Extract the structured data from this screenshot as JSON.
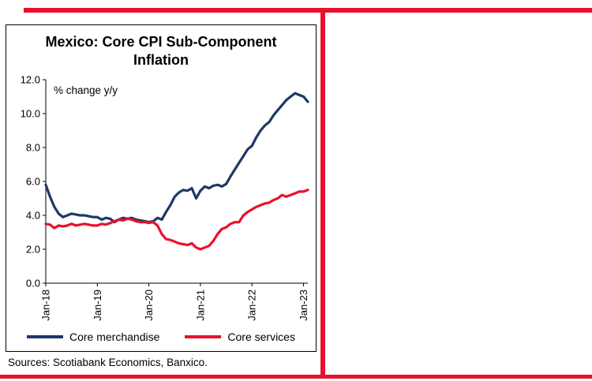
{
  "page": {
    "accent_color": "#e8112d"
  },
  "chart_data": {
    "type": "line",
    "title": "Mexico: Core CPI Sub-Component Inflation",
    "annotation": "% change y/y",
    "xlabel": "",
    "ylabel": "",
    "ylim": [
      0,
      12
    ],
    "ytick_step": 2,
    "grid": false,
    "legend_position": "bottom",
    "x_tick_labels": [
      "Jan-18",
      "Jan-19",
      "Jan-20",
      "Jan-21",
      "Jan-22",
      "Jan-23"
    ],
    "x_tick_positions": [
      0,
      12,
      24,
      36,
      48,
      60
    ],
    "x_frequency": "monthly",
    "series": [
      {
        "name": "Core merchandise",
        "color": "#1f3864",
        "values": [
          5.8,
          5.1,
          4.5,
          4.1,
          3.9,
          4.0,
          4.1,
          4.05,
          4.0,
          4.0,
          3.95,
          3.9,
          3.9,
          3.75,
          3.85,
          3.8,
          3.6,
          3.75,
          3.85,
          3.8,
          3.85,
          3.75,
          3.7,
          3.65,
          3.6,
          3.65,
          3.85,
          3.75,
          4.2,
          4.6,
          5.1,
          5.35,
          5.5,
          5.45,
          5.6,
          5.0,
          5.45,
          5.7,
          5.6,
          5.75,
          5.8,
          5.7,
          5.85,
          6.3,
          6.7,
          7.1,
          7.5,
          7.9,
          8.1,
          8.6,
          9.0,
          9.3,
          9.5,
          9.9,
          10.2,
          10.5,
          10.8,
          11.0,
          11.2,
          11.1,
          11.0,
          10.7
        ]
      },
      {
        "name": "Core services",
        "color": "#e8112d",
        "values": [
          3.5,
          3.45,
          3.25,
          3.4,
          3.35,
          3.4,
          3.5,
          3.4,
          3.45,
          3.5,
          3.45,
          3.4,
          3.4,
          3.5,
          3.45,
          3.55,
          3.65,
          3.75,
          3.7,
          3.8,
          3.75,
          3.65,
          3.6,
          3.6,
          3.55,
          3.6,
          3.4,
          2.9,
          2.6,
          2.55,
          2.45,
          2.35,
          2.3,
          2.25,
          2.35,
          2.1,
          2.0,
          2.1,
          2.2,
          2.5,
          2.9,
          3.2,
          3.3,
          3.5,
          3.6,
          3.6,
          4.0,
          4.2,
          4.35,
          4.5,
          4.6,
          4.7,
          4.75,
          4.9,
          5.0,
          5.2,
          5.1,
          5.2,
          5.3,
          5.4,
          5.4,
          5.5
        ]
      }
    ],
    "source": "Sources: Scotiabank Economics, Banxico."
  }
}
